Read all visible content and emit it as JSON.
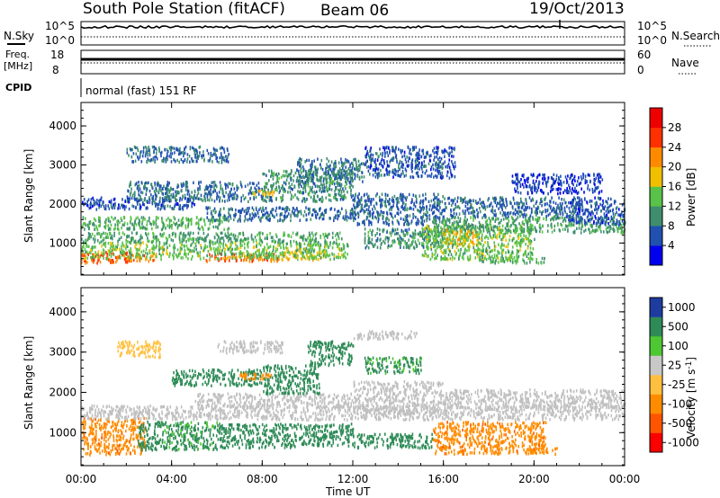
{
  "header": {
    "station": "South Pole Station (fitACF)",
    "beam": "Beam 06",
    "date": "19/Oct/2013"
  },
  "top_panels": {
    "nsky_label": "N.Sky",
    "nsky_ticks": [
      "10^5",
      "10^0"
    ],
    "nsearch_label": "N.Search",
    "nsearch_ticks": [
      "10^5",
      "10^0"
    ],
    "freq_label_1": "Freq.",
    "freq_label_2": "[MHz]",
    "freq_ticks": [
      "18",
      "8"
    ],
    "nave_label": "Nave",
    "nave_ticks": [
      "60",
      "0"
    ],
    "cpid_label": "CPID",
    "cpid_text": "normal (fast) 151 RF"
  },
  "colors": {
    "power_scale": [
      "#0000ee",
      "#2050b0",
      "#3e8e6e",
      "#59c248",
      "#f0c000",
      "#ff8a00",
      "#ff3000",
      "#ee0000"
    ],
    "velocity_scale": [
      "#ff0000",
      "#ff5500",
      "#ff8c00",
      "#ffc040",
      "#c8c8c8",
      "#4ec832",
      "#2e8b57",
      "#1e3ca0"
    ],
    "ground_scatter": "#c0c0c0"
  },
  "chart_data": [
    {
      "type": "heatmap",
      "name": "power",
      "ylabel": "Slant Range [km]",
      "xlabel": "",
      "x_ticks": [
        "00:00",
        "04:00",
        "08:00",
        "12:00",
        "16:00",
        "20:00",
        "00:00"
      ],
      "x_range_hours": [
        0,
        24
      ],
      "y_ticks": [
        1000,
        2000,
        3000,
        4000
      ],
      "y_range_km": [
        180,
        4600
      ],
      "colorbar_label": "Power [dB]",
      "colorbar_ticks": [
        4,
        8,
        12,
        16,
        20,
        24,
        28
      ],
      "colorbar_range": [
        0,
        32
      ],
      "regions": [
        {
          "t": [
            0.0,
            2.2
          ],
          "r": [
            520,
            800
          ],
          "value": 25
        },
        {
          "t": [
            2.0,
            3.3
          ],
          "r": [
            560,
            760
          ],
          "value": 22
        },
        {
          "t": [
            5.5,
            8.8
          ],
          "r": [
            560,
            760
          ],
          "value": 24
        },
        {
          "t": [
            8.8,
            10.8
          ],
          "r": [
            600,
            800
          ],
          "value": 18
        },
        {
          "t": [
            0.0,
            11.8
          ],
          "r": [
            620,
            1050
          ],
          "value": 14
        },
        {
          "t": [
            0.0,
            11.5
          ],
          "r": [
            1050,
            1300
          ],
          "value": 11
        },
        {
          "t": [
            0.0,
            6.5
          ],
          "r": [
            1380,
            1700
          ],
          "value": 12
        },
        {
          "t": [
            5.5,
            12.0
          ],
          "r": [
            1600,
            1950
          ],
          "value": 7
        },
        {
          "t": [
            0.0,
            5.0
          ],
          "r": [
            1900,
            2200
          ],
          "value": 6
        },
        {
          "t": [
            2.0,
            8.0
          ],
          "r": [
            2100,
            2600
          ],
          "value": 8
        },
        {
          "t": [
            8.0,
            12.0
          ],
          "r": [
            2100,
            2900
          ],
          "value": 10
        },
        {
          "t": [
            9.5,
            12.5
          ],
          "r": [
            2600,
            3200
          ],
          "value": 9
        },
        {
          "t": [
            2.0,
            6.5
          ],
          "r": [
            3100,
            3500
          ],
          "value": 7
        },
        {
          "t": [
            12.5,
            16.5
          ],
          "r": [
            2700,
            3500
          ],
          "value": 6
        },
        {
          "t": [
            12.0,
            16.0
          ],
          "r": [
            1500,
            2300
          ],
          "value": 7
        },
        {
          "t": [
            12.5,
            16.0
          ],
          "r": [
            900,
            1400
          ],
          "value": 10
        },
        {
          "t": [
            15.0,
            20.0
          ],
          "r": [
            600,
            1500
          ],
          "value": 14
        },
        {
          "t": [
            16.0,
            17.5
          ],
          "r": [
            1000,
            1400
          ],
          "value": 18
        },
        {
          "t": [
            17.5,
            20.5
          ],
          "r": [
            520,
            650
          ],
          "value": 12
        },
        {
          "t": [
            15.5,
            24.0
          ],
          "r": [
            1300,
            1700
          ],
          "value": 11
        },
        {
          "t": [
            16.0,
            22.0
          ],
          "r": [
            1700,
            2200
          ],
          "value": 7
        },
        {
          "t": [
            21.5,
            24.0
          ],
          "r": [
            1500,
            2200
          ],
          "value": 6
        },
        {
          "t": [
            19.0,
            23.0
          ],
          "r": [
            2300,
            2800
          ],
          "value": 5
        },
        {
          "t": [
            7.5,
            8.5
          ],
          "r": [
            2250,
            2400
          ],
          "value": 18
        }
      ]
    },
    {
      "type": "heatmap",
      "name": "velocity",
      "ylabel": "Slant Range [km]",
      "xlabel": "Time UT",
      "x_ticks": [
        "00:00",
        "04:00",
        "08:00",
        "12:00",
        "16:00",
        "20:00",
        "00:00"
      ],
      "x_range_hours": [
        0,
        24
      ],
      "y_ticks": [
        1000,
        2000,
        3000,
        4000
      ],
      "y_range_km": [
        180,
        4600
      ],
      "colorbar_label": "Velocity [m s",
      "colorbar_label_sup": "-1",
      "colorbar_ticks": [
        "-1000",
        "-500",
        "-100",
        "-25",
        "25",
        "100",
        "500",
        "1000"
      ],
      "regions": [
        {
          "t": [
            0.0,
            2.8
          ],
          "r": [
            480,
            1400
          ],
          "value": -400
        },
        {
          "t": [
            2.5,
            3.5
          ],
          "r": [
            600,
            1300
          ],
          "value": 150
        },
        {
          "t": [
            3.5,
            6.0
          ],
          "r": [
            600,
            1300
          ],
          "value": 120
        },
        {
          "t": [
            6.0,
            9.5
          ],
          "r": [
            650,
            1250
          ],
          "value": 300
        },
        {
          "t": [
            9.5,
            12.0
          ],
          "r": [
            700,
            1250
          ],
          "value": 250
        },
        {
          "t": [
            12.0,
            15.5
          ],
          "r": [
            650,
            1000
          ],
          "value": 300
        },
        {
          "t": [
            15.5,
            20.5
          ],
          "r": [
            500,
            1300
          ],
          "value": -400
        },
        {
          "t": [
            19.5,
            21.0
          ],
          "r": [
            500,
            650
          ],
          "value": -300
        },
        {
          "t": [
            0.0,
            24.0
          ],
          "r": [
            1350,
            1700
          ],
          "value": 0
        },
        {
          "t": [
            5.0,
            12.0
          ],
          "r": [
            1650,
            2000
          ],
          "value": 0
        },
        {
          "t": [
            12.0,
            16.0
          ],
          "r": [
            1500,
            2300
          ],
          "value": 0
        },
        {
          "t": [
            16.0,
            24.0
          ],
          "r": [
            1650,
            2100
          ],
          "value": 0
        },
        {
          "t": [
            4.0,
            8.0
          ],
          "r": [
            2200,
            2600
          ],
          "value": 250
        },
        {
          "t": [
            8.0,
            10.5
          ],
          "r": [
            2000,
            2700
          ],
          "value": 300
        },
        {
          "t": [
            10.0,
            12.0
          ],
          "r": [
            2700,
            3300
          ],
          "value": 350
        },
        {
          "t": [
            12.5,
            15.0
          ],
          "r": [
            2500,
            2900
          ],
          "value": 120
        },
        {
          "t": [
            12.0,
            15.0
          ],
          "r": [
            3350,
            3550
          ],
          "value": 0
        },
        {
          "t": [
            6.0,
            9.0
          ],
          "r": [
            3000,
            3300
          ],
          "value": 0
        },
        {
          "t": [
            1.5,
            3.5
          ],
          "r": [
            2900,
            3300
          ],
          "value": -50
        },
        {
          "t": [
            7.0,
            8.5
          ],
          "r": [
            2350,
            2500
          ],
          "value": -150
        }
      ]
    }
  ]
}
